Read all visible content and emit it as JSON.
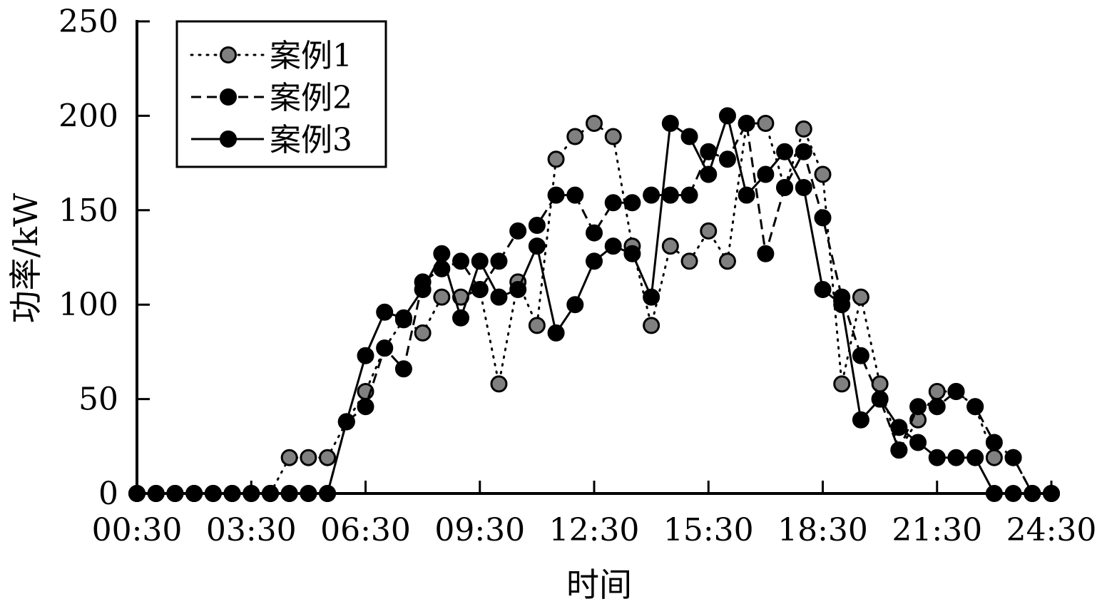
{
  "chart_data": {
    "type": "line",
    "xlabel": "时间",
    "ylabel": "功率/kW",
    "xlim": [
      0,
      48
    ],
    "ylim": [
      0,
      250
    ],
    "x_ticks": [
      {
        "v": 0,
        "label": "00:30"
      },
      {
        "v": 6,
        "label": "03:30"
      },
      {
        "v": 12,
        "label": "06:30"
      },
      {
        "v": 18,
        "label": "09:30"
      },
      {
        "v": 24,
        "label": "12:30"
      },
      {
        "v": 30,
        "label": "15:30"
      },
      {
        "v": 36,
        "label": "18:30"
      },
      {
        "v": 42,
        "label": "21:30"
      },
      {
        "v": 48,
        "label": "24:30"
      }
    ],
    "y_ticks": [
      0,
      50,
      100,
      150,
      200,
      250
    ],
    "legend": "top-left",
    "grid": false,
    "series": [
      {
        "name": "案例1",
        "line": "dotted",
        "marker_fill": "#808080",
        "values": [
          0,
          0,
          0,
          0,
          0,
          0,
          0,
          0,
          19,
          19,
          19,
          38,
          54,
          77,
          92,
          85,
          104,
          104,
          108,
          58,
          112,
          89,
          177,
          189,
          196,
          189,
          131,
          89,
          131,
          123,
          139,
          123,
          196,
          196,
          162,
          193,
          169,
          58,
          104,
          58,
          23,
          39,
          54,
          54,
          46,
          19,
          19,
          0,
          0
        ]
      },
      {
        "name": "案例2",
        "line": "dashed",
        "marker_fill": "#000000",
        "values": [
          0,
          0,
          0,
          0,
          0,
          0,
          0,
          0,
          0,
          0,
          0,
          38,
          46,
          77,
          66,
          112,
          119,
          123,
          108,
          123,
          139,
          142,
          158,
          158,
          138,
          154,
          154,
          158,
          158,
          158,
          181,
          177,
          196,
          127,
          162,
          181,
          146,
          104,
          73,
          50,
          23,
          46,
          46,
          54,
          46,
          27,
          19,
          0,
          0
        ]
      },
      {
        "name": "案例3",
        "line": "solid",
        "marker_fill": "#000000",
        "values": [
          0,
          0,
          0,
          0,
          0,
          0,
          0,
          0,
          0,
          0,
          0,
          38,
          73,
          96,
          93,
          108,
          127,
          93,
          123,
          104,
          108,
          131,
          85,
          100,
          123,
          131,
          127,
          104,
          196,
          189,
          169,
          200,
          158,
          169,
          181,
          162,
          108,
          100,
          39,
          50,
          35,
          27,
          19,
          19,
          19,
          0,
          0,
          0,
          0
        ]
      }
    ]
  }
}
